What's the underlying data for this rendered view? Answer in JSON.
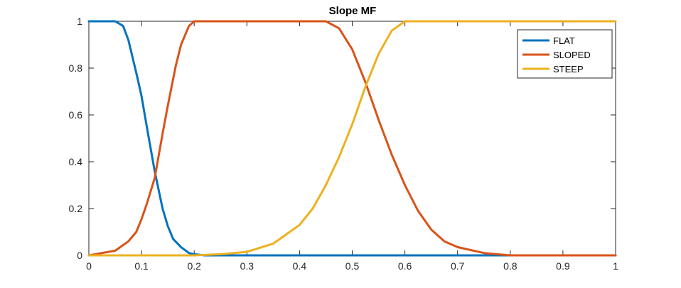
{
  "chart_data": {
    "type": "line",
    "title": "Slope MF",
    "xlabel": "",
    "ylabel": "",
    "xlim": [
      0,
      1
    ],
    "ylim": [
      0,
      1
    ],
    "xticks": [
      "0",
      "0.1",
      "0.2",
      "0.3",
      "0.4",
      "0.5",
      "0.6",
      "0.7",
      "0.8",
      "0.9",
      "1"
    ],
    "yticks": [
      "0",
      "0.2",
      "0.4",
      "0.6",
      "0.8",
      "1"
    ],
    "grid": false,
    "legend_position": "top-right",
    "series": [
      {
        "name": "FLAT",
        "color": "#0072BD",
        "x": [
          0,
          0.05,
          0.065,
          0.075,
          0.09,
          0.1,
          0.11,
          0.125,
          0.14,
          0.15,
          0.16,
          0.175,
          0.19,
          0.2,
          0.22,
          0.25,
          0.3,
          0.5,
          0.7,
          1.0
        ],
        "y": [
          1,
          1,
          0.98,
          0.92,
          0.78,
          0.68,
          0.55,
          0.36,
          0.2,
          0.125,
          0.07,
          0.035,
          0.01,
          0.005,
          0,
          0,
          0,
          0,
          0,
          0
        ]
      },
      {
        "name": "SLOPED",
        "color": "#D95319",
        "x": [
          0,
          0.05,
          0.075,
          0.09,
          0.1,
          0.11,
          0.125,
          0.14,
          0.15,
          0.165,
          0.175,
          0.19,
          0.2,
          0.25,
          0.3,
          0.4,
          0.45,
          0.475,
          0.5,
          0.525,
          0.55,
          0.575,
          0.6,
          0.625,
          0.65,
          0.675,
          0.7,
          0.75,
          0.8,
          0.9,
          1.0
        ],
        "y": [
          0,
          0.02,
          0.06,
          0.1,
          0.155,
          0.22,
          0.33,
          0.52,
          0.64,
          0.81,
          0.9,
          0.98,
          1,
          1,
          1,
          1,
          1,
          0.97,
          0.88,
          0.74,
          0.58,
          0.43,
          0.3,
          0.19,
          0.11,
          0.06,
          0.035,
          0.01,
          0,
          0,
          0
        ]
      },
      {
        "name": "STEEP",
        "color": "#EDB120",
        "x": [
          0,
          0.2,
          0.25,
          0.3,
          0.35,
          0.4,
          0.425,
          0.45,
          0.475,
          0.5,
          0.525,
          0.55,
          0.575,
          0.6,
          0.65,
          0.7,
          0.8,
          0.9,
          1.0
        ],
        "y": [
          0,
          0,
          0.005,
          0.015,
          0.05,
          0.13,
          0.2,
          0.3,
          0.42,
          0.56,
          0.72,
          0.86,
          0.96,
          1,
          1,
          1,
          1,
          1,
          1
        ]
      }
    ]
  }
}
